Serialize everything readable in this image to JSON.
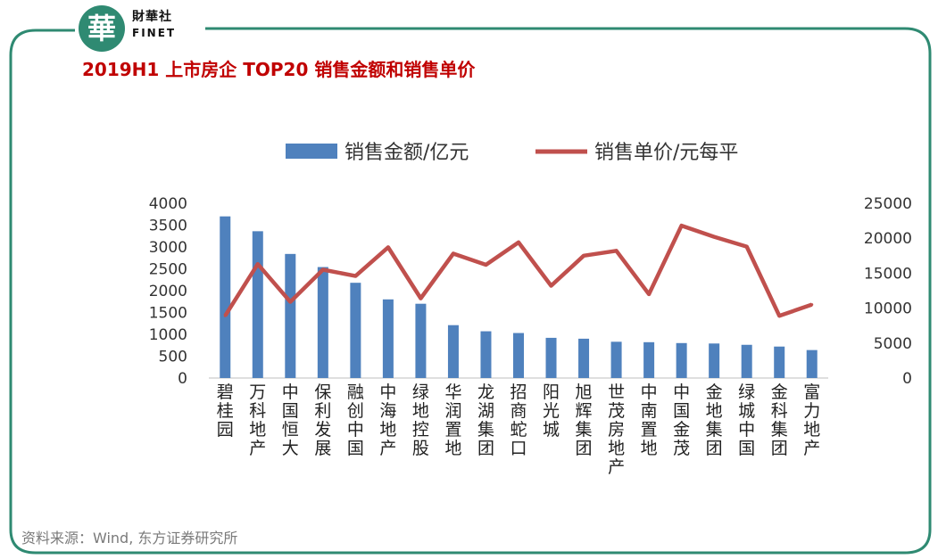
{
  "brand": {
    "cn": "財華社",
    "en": "FINET",
    "glyph": "華"
  },
  "title": "2019H1  上市房企 TOP20 销售金额和销售单价",
  "source": "资料来源：Wind, 东方证券研究所",
  "colors": {
    "bar": "#4f81bd",
    "line": "#c0504d",
    "frame": "#2f8a72",
    "title": "#c00000"
  },
  "chart_data": {
    "type": "bar",
    "categories": [
      "碧桂园",
      "万科地产",
      "中国恒大",
      "保利发展",
      "融创中国",
      "中海地产",
      "绿地控股",
      "华润置地",
      "龙湖集团",
      "招商蛇口",
      "阳光城",
      "旭辉集团",
      "世茂房地产",
      "中南置地",
      "中国金茂",
      "金地集团",
      "绿城中国",
      "金科集团",
      "富力地产"
    ],
    "series": [
      {
        "name": "销售金额/亿元",
        "type": "bar",
        "axis": "left",
        "values": [
          3700,
          3360,
          2840,
          2540,
          2180,
          1800,
          1700,
          1210,
          1070,
          1030,
          920,
          900,
          830,
          820,
          800,
          790,
          760,
          720,
          640
        ]
      },
      {
        "name": "销售单价/元每平",
        "type": "line",
        "axis": "right",
        "values": [
          8900,
          16300,
          10900,
          15500,
          14600,
          18700,
          11400,
          17800,
          16200,
          19400,
          13200,
          17500,
          18200,
          12000,
          21800,
          20200,
          18800,
          8900,
          10500
        ]
      }
    ],
    "left_axis": {
      "min": 0,
      "max": 4000,
      "ticks": [
        "0",
        "500",
        "1000",
        "1500",
        "2000",
        "2500",
        "3000",
        "3500",
        "4000"
      ]
    },
    "right_axis": {
      "min": 0,
      "max": 25000,
      "ticks": [
        "0",
        "5000",
        "10000",
        "15000",
        "20000",
        "25000"
      ]
    },
    "legend_position": "top"
  }
}
